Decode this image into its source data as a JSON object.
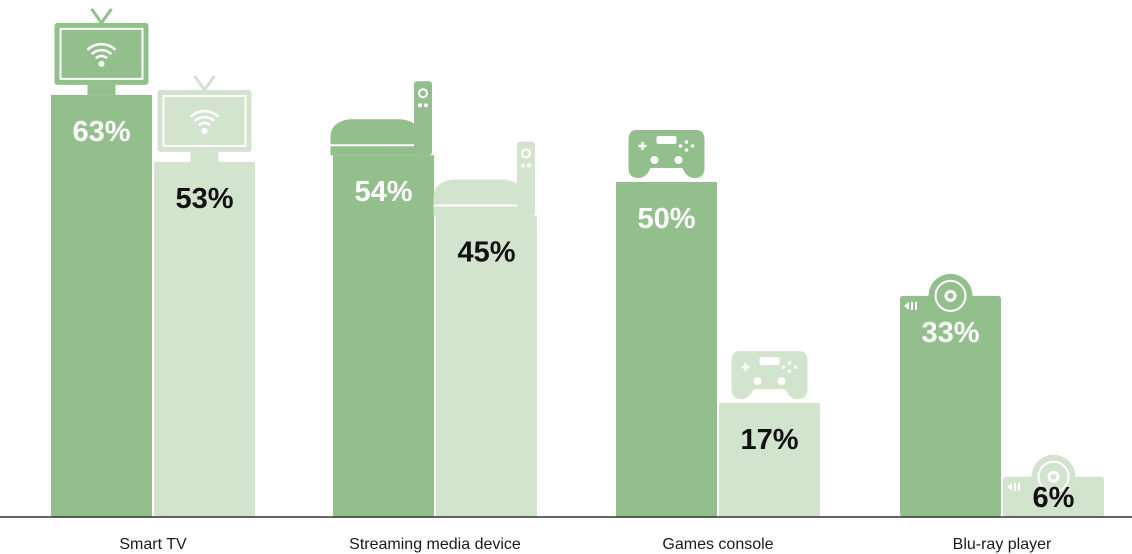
{
  "chart_data": {
    "type": "bar",
    "title": "",
    "xlabel": "",
    "ylabel": "",
    "ylim": [
      0,
      72
    ],
    "grid": false,
    "legend": "none",
    "categories": [
      "Smart TV",
      "Streaming media device",
      "Games console",
      "Blu-ray player"
    ],
    "icons": [
      "smart-tv-icon",
      "streaming-box-icon",
      "game-controller-icon",
      "blu-ray-player-icon"
    ],
    "series": [
      {
        "values": [
          63,
          54,
          50,
          33
        ],
        "labels": [
          "63%",
          "54%",
          "50%",
          "33%"
        ],
        "color": "#92bf8b",
        "label_color": "#ffffff"
      },
      {
        "values": [
          53,
          45,
          17,
          6
        ],
        "labels": [
          "53%",
          "45%",
          "17%",
          "6%"
        ],
        "color": "#d2e4cd",
        "label_color": "#111111"
      }
    ]
  }
}
